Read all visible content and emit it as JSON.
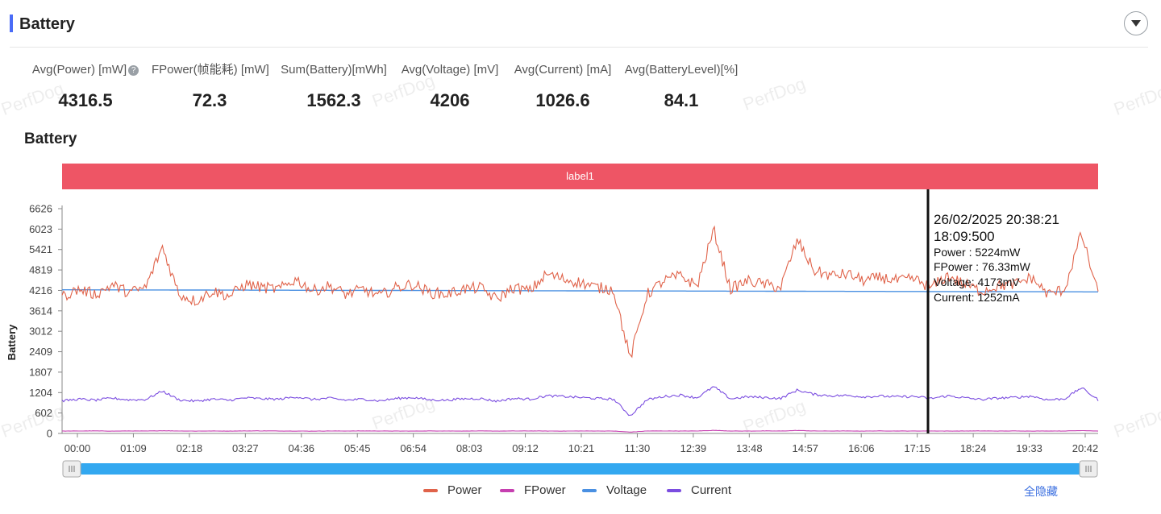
{
  "header": {
    "title": "Battery"
  },
  "stats": [
    {
      "label": "Avg(Power) [mW]",
      "value": "4316.5",
      "has_help": true
    },
    {
      "label": "FPower(帧能耗) [mW]",
      "value": "72.3",
      "has_help": false
    },
    {
      "label": "Sum(Battery)[mWh]",
      "value": "1562.3",
      "has_help": false
    },
    {
      "label": "Avg(Voltage) [mV]",
      "value": "4206",
      "has_help": false
    },
    {
      "label": "Avg(Current) [mA]",
      "value": "1026.6",
      "has_help": false
    },
    {
      "label": "Avg(BatteryLevel)[%]",
      "value": "84.1",
      "has_help": false
    }
  ],
  "watermark_text": "PerfDog",
  "chart_title": "Battery",
  "legend": {
    "hide_all": "全隐藏"
  },
  "chart_data": {
    "type": "line",
    "label_band": "label1",
    "ylabel": "Battery",
    "yticks": [
      "0",
      "602",
      "1204",
      "1807",
      "2409",
      "3012",
      "3614",
      "4216",
      "4819",
      "5421",
      "6023",
      "6626"
    ],
    "ylim": [
      0,
      6626
    ],
    "xticks": [
      "00:00",
      "01:09",
      "02:18",
      "03:27",
      "04:36",
      "05:45",
      "06:54",
      "08:03",
      "09:12",
      "10:21",
      "11:30",
      "12:39",
      "13:48",
      "14:57",
      "16:06",
      "17:15",
      "18:24",
      "19:33",
      "20:42"
    ],
    "series": [
      {
        "name": "Power",
        "color": "#e0634a",
        "values": [
          4030,
          4250,
          4100,
          4380,
          4150,
          4300,
          5500,
          4100,
          3900,
          4200,
          4050,
          4400,
          4300,
          4250,
          4550,
          4200,
          4350,
          4100,
          4250,
          4050,
          4300,
          4400,
          4150,
          4100,
          4250,
          4300,
          3950,
          4300,
          4200,
          4700,
          4550,
          4450,
          4300,
          4250,
          2200,
          4100,
          4500,
          4650,
          4350,
          6000,
          4250,
          4500,
          4400,
          4300,
          5700,
          4800,
          4650,
          4700,
          4500,
          4600,
          4500,
          4550,
          4300,
          4650,
          4400,
          4200,
          4350,
          4400,
          4600,
          4100,
          4250,
          5900,
          4100
        ]
      },
      {
        "name": "FPower",
        "color": "#c63fb0",
        "values": [
          70,
          72,
          75,
          68,
          74,
          71,
          80,
          73,
          69,
          72,
          70,
          74,
          76,
          72,
          70,
          68,
          73,
          71,
          75,
          72,
          70,
          69,
          74,
          72,
          71,
          73,
          70,
          72,
          74,
          71,
          69,
          73,
          72,
          70,
          40,
          72,
          74,
          71,
          73,
          90,
          72,
          70,
          74,
          72,
          88,
          73,
          71,
          72,
          70,
          74,
          72,
          71,
          73,
          70,
          72,
          74,
          71,
          73,
          70,
          72,
          71,
          85,
          72
        ]
      },
      {
        "name": "Voltage",
        "color": "#4a90e2",
        "values": [
          4235,
          4234,
          4233,
          4232,
          4231,
          4230,
          4229,
          4228,
          4227,
          4226,
          4225,
          4224,
          4223,
          4222,
          4221,
          4220,
          4219,
          4218,
          4217,
          4216,
          4215,
          4214,
          4213,
          4212,
          4211,
          4210,
          4209,
          4208,
          4207,
          4206,
          4205,
          4204,
          4203,
          4202,
          4201,
          4200,
          4199,
          4198,
          4197,
          4196,
          4195,
          4194,
          4193,
          4192,
          4191,
          4190,
          4189,
          4188,
          4187,
          4186,
          4185,
          4184,
          4183,
          4182,
          4181,
          4180,
          4179,
          4178,
          4177,
          4176,
          4175,
          4174,
          4173
        ]
      },
      {
        "name": "Current",
        "color": "#7b4de0",
        "values": [
          960,
          1010,
          980,
          1040,
          990,
          1000,
          1250,
          990,
          950,
          1010,
          980,
          1050,
          1020,
          1010,
          1080,
          1000,
          1040,
          980,
          1010,
          960,
          1030,
          1060,
          990,
          980,
          1020,
          1030,
          950,
          1030,
          1010,
          1110,
          1090,
          1060,
          1030,
          1010,
          520,
          990,
          1090,
          1130,
          1050,
          1380,
          1020,
          1080,
          1060,
          1030,
          1280,
          1150,
          1110,
          1120,
          1080,
          1100,
          1080,
          1090,
          1030,
          1110,
          1050,
          1000,
          1040,
          1060,
          1100,
          990,
          1020,
          1350,
          990
        ]
      }
    ],
    "cursor": {
      "time": "18:09",
      "tooltip_lines": [
        "26/02/2025 20:38:21",
        "18:09:500",
        "Power   : 5224mW",
        "FPower : 76.33mW",
        "Voltage: 4173mV",
        "Current: 1252mA"
      ]
    },
    "grid": false,
    "legend_position": "bottom"
  }
}
